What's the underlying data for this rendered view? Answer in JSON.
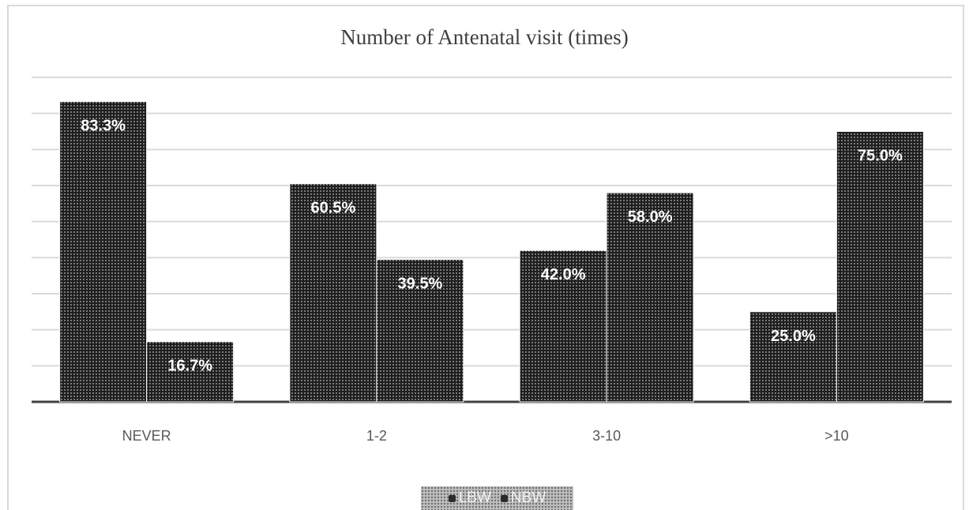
{
  "chart_data": {
    "type": "bar",
    "title": "Number of Antenatal visit (times)",
    "categories": [
      "NEVER",
      "1-2",
      "3-10",
      ">10"
    ],
    "series": [
      {
        "name": "LBW",
        "values": [
          83.3,
          60.5,
          42.0,
          25.0
        ],
        "labels": [
          "83.3%",
          "60.5%",
          "42.0%",
          "25.0%"
        ]
      },
      {
        "name": "NBW",
        "values": [
          16.7,
          39.5,
          58.0,
          75.0
        ],
        "labels": [
          "16.7%",
          "39.5%",
          "58.0%",
          "75.0%"
        ]
      }
    ],
    "ylim": [
      0,
      90
    ],
    "grid": true,
    "legend_position": "bottom",
    "colors": {
      "bar_fill": "#1e1e1e",
      "bar_dots": "#bdbdbd",
      "grid": "#d9d9d9",
      "axis": "#404040",
      "label_text": "#ffffff",
      "tick_text": "#595959"
    }
  }
}
